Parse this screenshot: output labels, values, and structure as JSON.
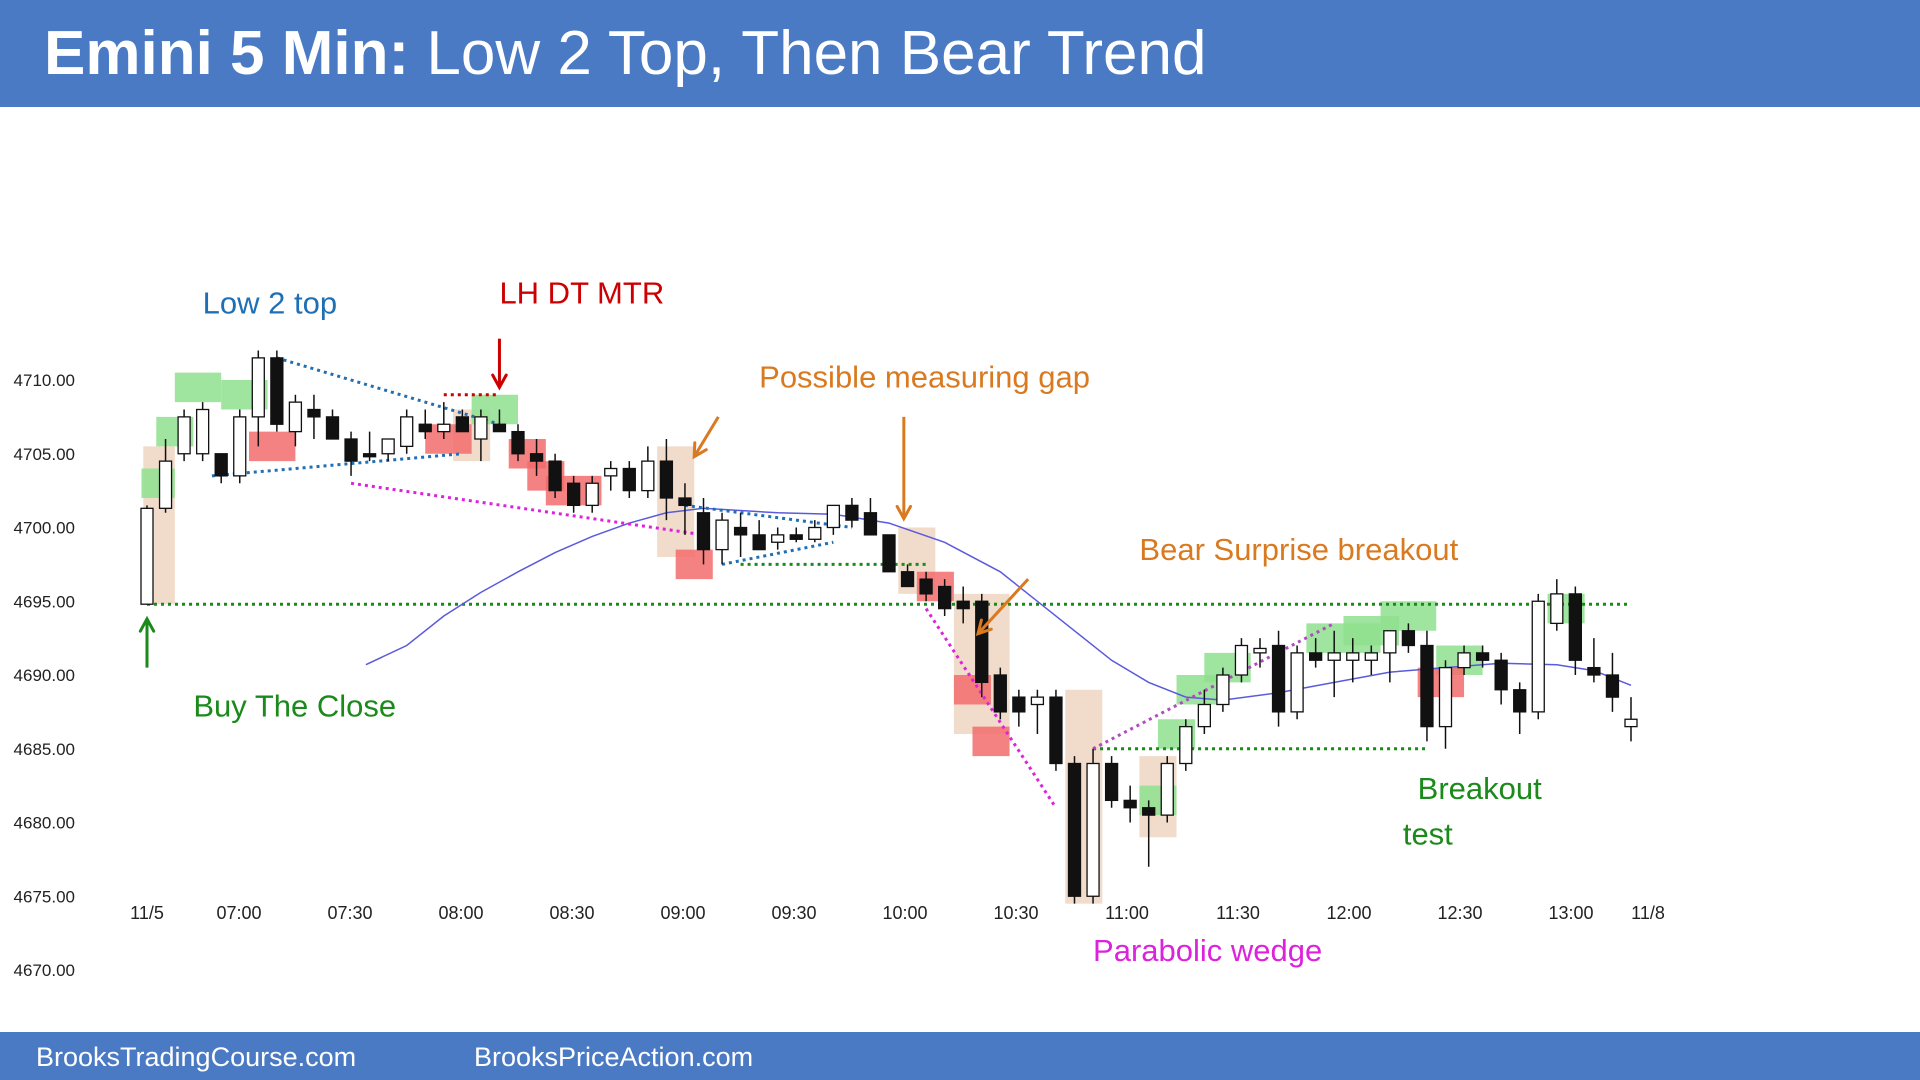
{
  "header": {
    "title_bold": "Emini 5 Min:",
    "title_rest": " Low 2 Top, Then Bear Trend",
    "background": "#4a7ac4"
  },
  "footer": {
    "link_left": "BrooksTradingCourse.com",
    "link_right": "BrooksPriceAction.com"
  },
  "chart_data": {
    "type": "candlestick",
    "y_tick_labels": [
      "4710.00",
      "4705.00",
      "4700.00",
      "4695.00",
      "4690.00",
      "4685.00",
      "4680.00",
      "4675.00",
      "4670.00"
    ],
    "x_tick_labels": [
      "11/5",
      "07:00",
      "07:30",
      "08:00",
      "08:30",
      "09:00",
      "09:30",
      "10:00",
      "10:30",
      "11:00",
      "11:30",
      "12:00",
      "12:30",
      "13:00",
      "11/8"
    ],
    "ylim": [
      4668,
      4712
    ],
    "grid": false,
    "bar_count": 81,
    "candles": [
      {
        "o": 4694.8,
        "h": 4701.5,
        "l": 4694.8,
        "c": 4701.3
      },
      {
        "o": 4701.3,
        "h": 4706.0,
        "l": 4701.0,
        "c": 4704.5
      },
      {
        "o": 4705.0,
        "h": 4708.0,
        "l": 4704.5,
        "c": 4707.5
      },
      {
        "o": 4705.0,
        "h": 4708.5,
        "l": 4704.5,
        "c": 4708.0
      },
      {
        "o": 4705.0,
        "h": 4705.0,
        "l": 4703.0,
        "c": 4703.5
      },
      {
        "o": 4703.5,
        "h": 4708.0,
        "l": 4703.0,
        "c": 4707.5
      },
      {
        "o": 4707.5,
        "h": 4712.0,
        "l": 4705.5,
        "c": 4711.5
      },
      {
        "o": 4711.5,
        "h": 4712.0,
        "l": 4706.5,
        "c": 4707.0
      },
      {
        "o": 4706.5,
        "h": 4709.0,
        "l": 4705.5,
        "c": 4708.5
      },
      {
        "o": 4708.0,
        "h": 4709.0,
        "l": 4706.0,
        "c": 4707.5
      },
      {
        "o": 4707.5,
        "h": 4708.0,
        "l": 4706.0,
        "c": 4706.0
      },
      {
        "o": 4706.0,
        "h": 4706.5,
        "l": 4703.5,
        "c": 4704.5
      },
      {
        "o": 4705.0,
        "h": 4706.5,
        "l": 4704.5,
        "c": 4704.8
      },
      {
        "o": 4705.0,
        "h": 4706.0,
        "l": 4704.5,
        "c": 4706.0
      },
      {
        "o": 4705.5,
        "h": 4708.0,
        "l": 4705.0,
        "c": 4707.5
      },
      {
        "o": 4707.0,
        "h": 4708.0,
        "l": 4706.0,
        "c": 4706.5
      },
      {
        "o": 4706.5,
        "h": 4708.5,
        "l": 4706.0,
        "c": 4707.0
      },
      {
        "o": 4707.5,
        "h": 4708.0,
        "l": 4706.5,
        "c": 4706.5
      },
      {
        "o": 4706.0,
        "h": 4708.0,
        "l": 4704.5,
        "c": 4707.5
      },
      {
        "o": 4707.0,
        "h": 4708.0,
        "l": 4706.5,
        "c": 4706.5
      },
      {
        "o": 4706.5,
        "h": 4707.0,
        "l": 4704.5,
        "c": 4705.0
      },
      {
        "o": 4705.0,
        "h": 4706.0,
        "l": 4703.5,
        "c": 4704.5
      },
      {
        "o": 4704.5,
        "h": 4705.0,
        "l": 4702.0,
        "c": 4702.5
      },
      {
        "o": 4703.0,
        "h": 4703.5,
        "l": 4701.0,
        "c": 4701.5
      },
      {
        "o": 4701.5,
        "h": 4703.5,
        "l": 4701.0,
        "c": 4703.0
      },
      {
        "o": 4703.5,
        "h": 4704.5,
        "l": 4702.5,
        "c": 4704.0
      },
      {
        "o": 4704.0,
        "h": 4704.5,
        "l": 4702.0,
        "c": 4702.5
      },
      {
        "o": 4702.5,
        "h": 4705.5,
        "l": 4702.0,
        "c": 4704.5
      },
      {
        "o": 4704.5,
        "h": 4706.0,
        "l": 4700.5,
        "c": 4702.0
      },
      {
        "o": 4702.0,
        "h": 4703.0,
        "l": 4699.5,
        "c": 4701.5
      },
      {
        "o": 4701.0,
        "h": 4702.0,
        "l": 4697.5,
        "c": 4698.5
      },
      {
        "o": 4698.5,
        "h": 4701.0,
        "l": 4697.5,
        "c": 4700.5
      },
      {
        "o": 4700.0,
        "h": 4701.0,
        "l": 4698.0,
        "c": 4699.5
      },
      {
        "o": 4699.5,
        "h": 4700.5,
        "l": 4698.5,
        "c": 4698.5
      },
      {
        "o": 4699.0,
        "h": 4700.0,
        "l": 4698.5,
        "c": 4699.5
      },
      {
        "o": 4699.5,
        "h": 4700.0,
        "l": 4699.0,
        "c": 4699.2
      },
      {
        "o": 4699.2,
        "h": 4700.5,
        "l": 4699.0,
        "c": 4700.0
      },
      {
        "o": 4700.0,
        "h": 4701.5,
        "l": 4699.5,
        "c": 4701.5
      },
      {
        "o": 4701.5,
        "h": 4702.0,
        "l": 4700.0,
        "c": 4700.5
      },
      {
        "o": 4701.0,
        "h": 4702.0,
        "l": 4699.5,
        "c": 4699.5
      },
      {
        "o": 4699.5,
        "h": 4699.5,
        "l": 4697.0,
        "c": 4697.0
      },
      {
        "o": 4697.0,
        "h": 4697.5,
        "l": 4696.0,
        "c": 4696.0
      },
      {
        "o": 4696.5,
        "h": 4697.0,
        "l": 4695.0,
        "c": 4695.5
      },
      {
        "o": 4696.0,
        "h": 4696.5,
        "l": 4694.0,
        "c": 4694.5
      },
      {
        "o": 4695.0,
        "h": 4696.0,
        "l": 4693.5,
        "c": 4694.5
      },
      {
        "o": 4695.0,
        "h": 4695.5,
        "l": 4688.5,
        "c": 4689.5
      },
      {
        "o": 4690.0,
        "h": 4690.5,
        "l": 4687.0,
        "c": 4687.5
      },
      {
        "o": 4688.5,
        "h": 4689.0,
        "l": 4686.5,
        "c": 4687.5
      },
      {
        "o": 4688.0,
        "h": 4689.0,
        "l": 4686.0,
        "c": 4688.5
      },
      {
        "o": 4688.5,
        "h": 4689.0,
        "l": 4683.5,
        "c": 4684.0
      },
      {
        "o": 4684.0,
        "h": 4684.5,
        "l": 4674.5,
        "c": 4675.0
      },
      {
        "o": 4675.0,
        "h": 4685.0,
        "l": 4674.5,
        "c": 4684.0
      },
      {
        "o": 4684.0,
        "h": 4684.5,
        "l": 4681.0,
        "c": 4681.5
      },
      {
        "o": 4681.5,
        "h": 4682.5,
        "l": 4680.0,
        "c": 4681.0
      },
      {
        "o": 4681.0,
        "h": 4681.5,
        "l": 4677.0,
        "c": 4680.5
      },
      {
        "o": 4680.5,
        "h": 4684.5,
        "l": 4680.0,
        "c": 4684.0
      },
      {
        "o": 4684.0,
        "h": 4687.0,
        "l": 4683.5,
        "c": 4686.5
      },
      {
        "o": 4686.5,
        "h": 4689.0,
        "l": 4686.0,
        "c": 4688.0
      },
      {
        "o": 4688.0,
        "h": 4690.5,
        "l": 4687.5,
        "c": 4690.0
      },
      {
        "o": 4690.0,
        "h": 4692.5,
        "l": 4689.5,
        "c": 4692.0
      },
      {
        "o": 4691.5,
        "h": 4692.5,
        "l": 4690.5,
        "c": 4691.8
      },
      {
        "o": 4692.0,
        "h": 4693.0,
        "l": 4686.5,
        "c": 4687.5
      },
      {
        "o": 4687.5,
        "h": 4692.0,
        "l": 4687.0,
        "c": 4691.5
      },
      {
        "o": 4691.5,
        "h": 4692.5,
        "l": 4690.5,
        "c": 4691.0
      },
      {
        "o": 4691.0,
        "h": 4693.0,
        "l": 4688.5,
        "c": 4691.5
      },
      {
        "o": 4691.0,
        "h": 4692.5,
        "l": 4689.5,
        "c": 4691.5
      },
      {
        "o": 4691.0,
        "h": 4692.0,
        "l": 4690.0,
        "c": 4691.5
      },
      {
        "o": 4691.5,
        "h": 4693.0,
        "l": 4689.5,
        "c": 4693.0
      },
      {
        "o": 4693.0,
        "h": 4693.5,
        "l": 4691.5,
        "c": 4692.0
      },
      {
        "o": 4692.0,
        "h": 4693.0,
        "l": 4685.5,
        "c": 4686.5
      },
      {
        "o": 4686.5,
        "h": 4691.0,
        "l": 4685.0,
        "c": 4690.5
      },
      {
        "o": 4690.5,
        "h": 4692.0,
        "l": 4690.0,
        "c": 4691.5
      },
      {
        "o": 4691.5,
        "h": 4692.0,
        "l": 4690.5,
        "c": 4691.0
      },
      {
        "o": 4691.0,
        "h": 4691.5,
        "l": 4688.0,
        "c": 4689.0
      },
      {
        "o": 4689.0,
        "h": 4689.5,
        "l": 4686.0,
        "c": 4687.5
      },
      {
        "o": 4687.5,
        "h": 4695.5,
        "l": 4687.0,
        "c": 4695.0
      },
      {
        "o": 4693.5,
        "h": 4696.5,
        "l": 4693.0,
        "c": 4695.5
      },
      {
        "o": 4695.5,
        "h": 4696.0,
        "l": 4690.0,
        "c": 4691.0
      },
      {
        "o": 4690.5,
        "h": 4692.5,
        "l": 4689.5,
        "c": 4690.0
      },
      {
        "o": 4690.0,
        "h": 4691.5,
        "l": 4687.5,
        "c": 4688.5
      },
      {
        "o": 4686.5,
        "h": 4688.5,
        "l": 4685.5,
        "c": 4687.0
      }
    ],
    "moving_average": [
      [
        11.8,
        4690.7
      ],
      [
        14,
        4692.0
      ],
      [
        16,
        4694.0
      ],
      [
        18,
        4695.6
      ],
      [
        20,
        4697.0
      ],
      [
        22,
        4698.3
      ],
      [
        24,
        4699.4
      ],
      [
        26,
        4700.3
      ],
      [
        28,
        4701.0
      ],
      [
        30,
        4701.3
      ],
      [
        34,
        4701.0
      ],
      [
        37,
        4700.9
      ],
      [
        40,
        4700.3
      ],
      [
        43,
        4699.0
      ],
      [
        46,
        4697.0
      ],
      [
        48,
        4695.0
      ],
      [
        50,
        4693.0
      ],
      [
        52,
        4691.0
      ],
      [
        54,
        4689.5
      ],
      [
        56,
        4688.5
      ],
      [
        58,
        4688.3
      ],
      [
        61,
        4688.8
      ],
      [
        64,
        4689.5
      ],
      [
        67,
        4690.2
      ],
      [
        70,
        4690.5
      ],
      [
        73,
        4690.8
      ],
      [
        76,
        4690.7
      ],
      [
        78,
        4690.3
      ],
      [
        80,
        4689.3
      ]
    ],
    "levels": [
      {
        "name": "close-level",
        "y": 4694.8,
        "x_from": 0,
        "x_to": 80,
        "color": "#1a8a1a"
      },
      {
        "name": "gap-level",
        "y": 4697.5,
        "x_from": 32,
        "x_to": 42,
        "color": "#1a8a1a"
      },
      {
        "name": "breakout-level",
        "y": 4685.0,
        "x_from": 51,
        "x_to": 69,
        "color": "#1a8a1a"
      },
      {
        "name": "lh-level",
        "y": 4709.0,
        "x_from": 16,
        "x_to": 19,
        "color": "#cc0000"
      }
    ],
    "trend_lines": [
      {
        "name": "low2-top-line",
        "color": "#1f6fb5",
        "points": [
          [
            7,
            4711.5
          ],
          [
            19,
            4707.0
          ]
        ]
      },
      {
        "name": "low2-bottom-line",
        "color": "#1f6fb5",
        "points": [
          [
            3.5,
            4703.5
          ],
          [
            17,
            4705.0
          ]
        ]
      },
      {
        "name": "wedge-top-line",
        "color": "#1f6fb5",
        "points": [
          [
            29,
            4701.5
          ],
          [
            38,
            4700.0
          ]
        ]
      },
      {
        "name": "wedge-bottom-line",
        "color": "#1f6fb5",
        "points": [
          [
            31,
            4697.5
          ],
          [
            37,
            4699.0
          ]
        ]
      },
      {
        "name": "magenta-channel-line",
        "color": "#dd22dd",
        "points": [
          [
            11,
            4703.0
          ],
          [
            30,
            4699.5
          ]
        ]
      },
      {
        "name": "parabolic-line",
        "color": "#dd22dd",
        "points": [
          [
            42,
            4694.5
          ],
          [
            49,
            4681.0
          ]
        ]
      },
      {
        "name": "rally-line",
        "color": "#b04cc0",
        "points": [
          [
            51,
            4685.0
          ],
          [
            64,
            4693.5
          ]
        ]
      }
    ],
    "highlights": [
      {
        "color": "peach",
        "x0": -0.2,
        "x1": 1.5,
        "y0": 4694.8,
        "y1": 4705.5
      },
      {
        "color": "peach",
        "x0": 16.5,
        "x1": 18.5,
        "y0": 4704.5,
        "y1": 4708.0
      },
      {
        "color": "peach",
        "x0": 27.5,
        "x1": 29.5,
        "y0": 4698.0,
        "y1": 4705.5
      },
      {
        "color": "peach",
        "x0": 40.5,
        "x1": 42.5,
        "y0": 4695.5,
        "y1": 4700.0
      },
      {
        "color": "peach",
        "x0": 43.5,
        "x1": 46.5,
        "y0": 4686.0,
        "y1": 4695.5
      },
      {
        "color": "peach",
        "x0": 49.5,
        "x1": 51.5,
        "y0": 4674.5,
        "y1": 4689.0
      },
      {
        "color": "peach",
        "x0": 53.5,
        "x1": 55.5,
        "y0": 4679.0,
        "y1": 4684.5
      },
      {
        "color": "green",
        "x0": -0.3,
        "x1": 1.5,
        "y0": 4702.0,
        "y1": 4704.0
      },
      {
        "color": "green",
        "x0": 0.5,
        "x1": 2.5,
        "y0": 4705.5,
        "y1": 4707.5
      },
      {
        "color": "green",
        "x0": 1.5,
        "x1": 4.0,
        "y0": 4708.5,
        "y1": 4710.5
      },
      {
        "color": "green",
        "x0": 4.0,
        "x1": 6.5,
        "y0": 4708.0,
        "y1": 4710.0
      },
      {
        "color": "green",
        "x0": 17.5,
        "x1": 20.0,
        "y0": 4707.0,
        "y1": 4709.0
      },
      {
        "color": "green",
        "x0": 54.5,
        "x1": 56.5,
        "y0": 4685.0,
        "y1": 4687.0
      },
      {
        "color": "green",
        "x0": 53.5,
        "x1": 55.5,
        "y0": 4680.5,
        "y1": 4682.5
      },
      {
        "color": "green",
        "x0": 55.5,
        "x1": 58.0,
        "y0": 4688.0,
        "y1": 4690.0
      },
      {
        "color": "green",
        "x0": 57.0,
        "x1": 59.5,
        "y0": 4689.5,
        "y1": 4691.5
      },
      {
        "color": "green",
        "x0": 62.5,
        "x1": 66.5,
        "y0": 4691.5,
        "y1": 4693.5
      },
      {
        "color": "green",
        "x0": 64.5,
        "x1": 67.5,
        "y0": 4692.0,
        "y1": 4694.0
      },
      {
        "color": "green",
        "x0": 66.5,
        "x1": 69.5,
        "y0": 4693.0,
        "y1": 4695.0
      },
      {
        "color": "green",
        "x0": 69.5,
        "x1": 72.0,
        "y0": 4690.0,
        "y1": 4692.0
      },
      {
        "color": "green",
        "x0": 75.5,
        "x1": 77.5,
        "y0": 4693.5,
        "y1": 4695.5
      },
      {
        "color": "red",
        "x0": 5.5,
        "x1": 8.0,
        "y0": 4704.5,
        "y1": 4706.5
      },
      {
        "color": "red",
        "x0": 15.0,
        "x1": 17.5,
        "y0": 4705.0,
        "y1": 4707.0
      },
      {
        "color": "red",
        "x0": 19.5,
        "x1": 21.5,
        "y0": 4704.0,
        "y1": 4706.0
      },
      {
        "color": "red",
        "x0": 20.5,
        "x1": 22.5,
        "y0": 4702.5,
        "y1": 4704.5
      },
      {
        "color": "red",
        "x0": 21.5,
        "x1": 24.5,
        "y0": 4701.5,
        "y1": 4703.5
      },
      {
        "color": "red",
        "x0": 28.5,
        "x1": 30.5,
        "y0": 4696.5,
        "y1": 4698.5
      },
      {
        "color": "red",
        "x0": 41.5,
        "x1": 43.5,
        "y0": 4695.0,
        "y1": 4697.0
      },
      {
        "color": "red",
        "x0": 43.5,
        "x1": 45.5,
        "y0": 4688.0,
        "y1": 4690.0
      },
      {
        "color": "red",
        "x0": 44.5,
        "x1": 46.5,
        "y0": 4684.5,
        "y1": 4686.5
      },
      {
        "color": "red",
        "x0": 68.5,
        "x1": 71.0,
        "y0": 4688.5,
        "y1": 4690.5
      }
    ],
    "annotations": [
      {
        "name": "annot-low-2-top",
        "text": "Low 2 top",
        "x": 3,
        "y": 4714.5,
        "color": "#1f6fb5"
      },
      {
        "name": "annot-lh-dt-mtr",
        "text": "LH DT MTR",
        "x": 19,
        "y": 4715.2,
        "color": "#cc0000"
      },
      {
        "name": "annot-measuring-gap",
        "text": "Possible measuring gap",
        "x": 33,
        "y": 4709.5,
        "color": "#d97a20"
      },
      {
        "name": "annot-bear-surprise",
        "text": "Bear Surprise breakout",
        "x": 53.5,
        "y": 4697.8,
        "color": "#d97a20"
      },
      {
        "name": "annot-buy-the-close",
        "text": "Buy The Close",
        "x": 2.5,
        "y": 4687.2,
        "color": "#1a8a1a"
      },
      {
        "name": "annot-breakout",
        "text": "Breakout",
        "x": 68.5,
        "y": 4681.6,
        "color": "#1a8a1a"
      },
      {
        "name": "annot-test",
        "text": "test",
        "x": 67.7,
        "y": 4678.5,
        "color": "#1a8a1a"
      },
      {
        "name": "annot-parabolic-wedge",
        "text": "Parabolic wedge",
        "x": 51,
        "y": 4670.6,
        "color": "#dd22dd"
      }
    ],
    "arrows": [
      {
        "name": "buy-close-arrow",
        "color": "#1a8a1a",
        "from": [
          0,
          4690.5
        ],
        "to": [
          0,
          4693.8
        ]
      },
      {
        "name": "lh-arrow",
        "color": "#cc0000",
        "from": [
          19,
          4712.8
        ],
        "to": [
          19,
          4709.5
        ]
      },
      {
        "name": "gap-arrow-1",
        "color": "#d97a20",
        "from": [
          30.8,
          4707.5
        ],
        "to": [
          29.5,
          4704.8
        ]
      },
      {
        "name": "gap-arrow-2",
        "color": "#d97a20",
        "from": [
          40.8,
          4707.5
        ],
        "to": [
          40.8,
          4700.6
        ]
      },
      {
        "name": "bear-surprise-arrow",
        "color": "#d97a20",
        "from": [
          47.5,
          4696.5
        ],
        "to": [
          44.8,
          4692.8
        ]
      }
    ],
    "colors": {
      "bull_body": "#ffffff",
      "bear_body": "#111111",
      "green_box": "#8ee08e",
      "red_box": "#f26c6c",
      "peach_box": "#efd7c4",
      "ma_line": "#5a5adc"
    }
  }
}
